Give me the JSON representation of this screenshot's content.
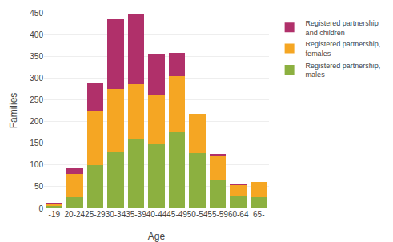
{
  "chart_data": {
    "type": "bar",
    "stacked": true,
    "xlabel": "Age",
    "ylabel": "Families",
    "categories": [
      "-19",
      "20-24",
      "25-29",
      "30-34",
      "35-39",
      "40-44",
      "45-49",
      "50-54",
      "55-59",
      "60-64",
      "65-"
    ],
    "series": [
      {
        "name": "Registered partnership,\nmales",
        "color": "#8cb040",
        "values": [
          5,
          25,
          100,
          130,
          158,
          148,
          175,
          128,
          65,
          27,
          25
        ]
      },
      {
        "name": "Registered partnership,\nfemales",
        "color": "#f5a623",
        "values": [
          5,
          55,
          125,
          145,
          128,
          112,
          130,
          90,
          55,
          28,
          35
        ]
      },
      {
        "name": "Registered partnership\nand children",
        "color": "#b0306a",
        "values": [
          3,
          12,
          63,
          160,
          162,
          95,
          52,
          0,
          5,
          3,
          0
        ]
      }
    ],
    "ylim": [
      0,
      450
    ],
    "yticks": [
      0,
      50,
      100,
      150,
      200,
      250,
      300,
      350,
      400,
      450
    ],
    "grid": true,
    "legend": "right"
  }
}
